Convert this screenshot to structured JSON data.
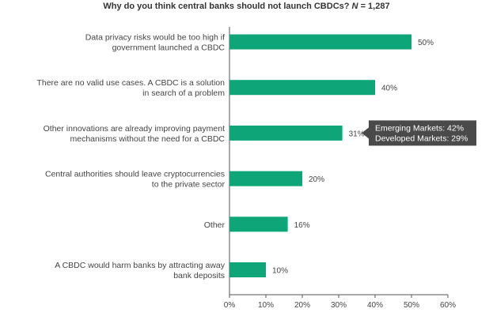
{
  "chart_data": {
    "type": "bar",
    "orientation": "horizontal",
    "title": "Why do you think central banks should not launch CBDCs?",
    "sample_label": "N",
    "sample_size": "= 1,287",
    "categories": [
      [
        "Data privacy risks would be too high if",
        "government launched a CBDC"
      ],
      [
        "There are no valid use cases. A CBDC is a solution",
        "in search of a problem"
      ],
      [
        "Other innovations are already improving payment",
        "mechanisms without the need for a CBDC"
      ],
      [
        "Central authorities should leave cryptocurrencies",
        "to the private sector"
      ],
      [
        "Other"
      ],
      [
        "A CBDC would harm banks by attracting away",
        "bank deposits"
      ]
    ],
    "values": [
      50,
      40,
      31,
      20,
      16,
      10
    ],
    "value_labels": [
      "50%",
      "40%",
      "31%",
      "20%",
      "16%",
      "10%"
    ],
    "xlim": [
      0,
      60
    ],
    "xticks": [
      "0%",
      "10%",
      "20%",
      "30%",
      "40%",
      "50%",
      "60%"
    ],
    "bar_color": "#0ea679",
    "callout": {
      "category_index": 2,
      "lines": [
        "Emerging Markets: 42%",
        "Developed Markets: 29%"
      ],
      "color": "#4a4a4a",
      "text_color": "#ffffff"
    }
  }
}
